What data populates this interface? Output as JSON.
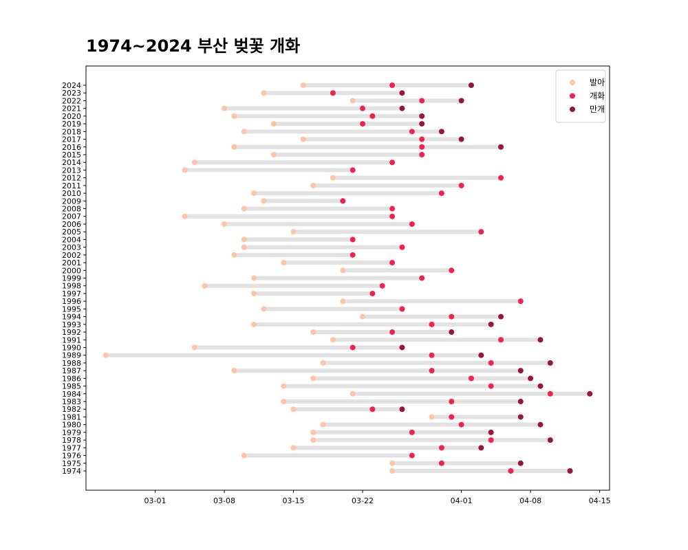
{
  "chart_data": {
    "type": "scatter",
    "title": "1974~2024 부산 벚꽃 개화",
    "xlabel": "",
    "ylabel": "",
    "x_tick_labels": [
      "03-01",
      "03-08",
      "03-15",
      "03-22",
      "04-01",
      "04-08",
      "04-15"
    ],
    "x_tick_dates": [
      "03-01",
      "03-08",
      "03-15",
      "03-22",
      "04-01",
      "04-08",
      "04-15"
    ],
    "xlim": [
      "02-22",
      "04-16"
    ],
    "legend_position": "top-right",
    "grid": false,
    "colors": {
      "bud": "#ffc4a6",
      "bloom": "#f2214e",
      "full": "#9b1440",
      "range_bar": "#e2e2e2"
    },
    "series": [
      {
        "name": "발아",
        "key": "bud"
      },
      {
        "name": "개화",
        "key": "bloom"
      },
      {
        "name": "만개",
        "key": "full"
      }
    ],
    "years": [
      {
        "year": "2024",
        "bud": "03-16",
        "bloom": "03-25",
        "full": "04-02"
      },
      {
        "year": "2023",
        "bud": "03-12",
        "bloom": "03-19",
        "full": "03-26"
      },
      {
        "year": "2022",
        "bud": "03-21",
        "bloom": "03-28",
        "full": "04-01"
      },
      {
        "year": "2021",
        "bud": "03-08",
        "bloom": "03-22",
        "full": "03-26"
      },
      {
        "year": "2020",
        "bud": "03-09",
        "bloom": "03-23",
        "full": "03-28"
      },
      {
        "year": "2019",
        "bud": "03-13",
        "bloom": "03-22",
        "full": "03-28"
      },
      {
        "year": "2018",
        "bud": "03-10",
        "bloom": "03-27",
        "full": "03-30"
      },
      {
        "year": "2017",
        "bud": "03-16",
        "bloom": "03-28",
        "full": "04-01"
      },
      {
        "year": "2016",
        "bud": "03-09",
        "bloom": "03-28",
        "full": "04-05"
      },
      {
        "year": "2015",
        "bud": "03-13",
        "bloom": "03-28",
        "full": null
      },
      {
        "year": "2014",
        "bud": "03-05",
        "bloom": "03-25",
        "full": null
      },
      {
        "year": "2013",
        "bud": "03-04",
        "bloom": "03-21",
        "full": null
      },
      {
        "year": "2012",
        "bud": "03-19",
        "bloom": "04-05",
        "full": null
      },
      {
        "year": "2011",
        "bud": "03-17",
        "bloom": "04-01",
        "full": null
      },
      {
        "year": "2010",
        "bud": "03-11",
        "bloom": "03-30",
        "full": null
      },
      {
        "year": "2009",
        "bud": "03-12",
        "bloom": "03-20",
        "full": null
      },
      {
        "year": "2008",
        "bud": "03-10",
        "bloom": "03-25",
        "full": null
      },
      {
        "year": "2007",
        "bud": "03-04",
        "bloom": "03-25",
        "full": null
      },
      {
        "year": "2006",
        "bud": "03-08",
        "bloom": "03-27",
        "full": null
      },
      {
        "year": "2005",
        "bud": "03-15",
        "bloom": "04-03",
        "full": null
      },
      {
        "year": "2004",
        "bud": "03-10",
        "bloom": "03-21",
        "full": null
      },
      {
        "year": "2003",
        "bud": "03-10",
        "bloom": "03-26",
        "full": null
      },
      {
        "year": "2002",
        "bud": "03-09",
        "bloom": "03-21",
        "full": null
      },
      {
        "year": "2001",
        "bud": "03-14",
        "bloom": "03-25",
        "full": null
      },
      {
        "year": "2000",
        "bud": "03-20",
        "bloom": "03-31",
        "full": null
      },
      {
        "year": "1999",
        "bud": "03-11",
        "bloom": "03-28",
        "full": null
      },
      {
        "year": "1998",
        "bud": "03-06",
        "bloom": "03-24",
        "full": null
      },
      {
        "year": "1997",
        "bud": "03-11",
        "bloom": "03-23",
        "full": null
      },
      {
        "year": "1996",
        "bud": "03-20",
        "bloom": "04-07",
        "full": null
      },
      {
        "year": "1995",
        "bud": "03-12",
        "bloom": "03-26",
        "full": null
      },
      {
        "year": "1994",
        "bud": "03-22",
        "bloom": "03-31",
        "full": "04-05"
      },
      {
        "year": "1993",
        "bud": "03-11",
        "bloom": "03-29",
        "full": "04-04"
      },
      {
        "year": "1992",
        "bud": "03-17",
        "bloom": "03-25",
        "full": "03-31"
      },
      {
        "year": "1991",
        "bud": "03-19",
        "bloom": "04-05",
        "full": "04-09"
      },
      {
        "year": "1990",
        "bud": "03-05",
        "bloom": "03-21",
        "full": "03-26"
      },
      {
        "year": "1989",
        "bud": "02-24",
        "bloom": "03-29",
        "full": "04-03"
      },
      {
        "year": "1988",
        "bud": "03-18",
        "bloom": "04-04",
        "full": "04-10"
      },
      {
        "year": "1987",
        "bud": "03-09",
        "bloom": "03-29",
        "full": "04-07"
      },
      {
        "year": "1986",
        "bud": "03-17",
        "bloom": "04-02",
        "full": "04-08"
      },
      {
        "year": "1985",
        "bud": "03-14",
        "bloom": "04-04",
        "full": "04-09"
      },
      {
        "year": "1984",
        "bud": "03-21",
        "bloom": "04-10",
        "full": "04-14"
      },
      {
        "year": "1983",
        "bud": "03-14",
        "bloom": "03-31",
        "full": "04-07"
      },
      {
        "year": "1982",
        "bud": "03-15",
        "bloom": "03-23",
        "full": "03-26"
      },
      {
        "year": "1981",
        "bud": "03-29",
        "bloom": "03-31",
        "full": "04-07"
      },
      {
        "year": "1980",
        "bud": "03-18",
        "bloom": "04-01",
        "full": "04-09"
      },
      {
        "year": "1979",
        "bud": "03-17",
        "bloom": "03-27",
        "full": "04-04"
      },
      {
        "year": "1978",
        "bud": "03-17",
        "bloom": "04-04",
        "full": "04-10"
      },
      {
        "year": "1977",
        "bud": "03-15",
        "bloom": "03-30",
        "full": "04-03"
      },
      {
        "year": "1976",
        "bud": "03-10",
        "bloom": "03-27",
        "full": null
      },
      {
        "year": "1975",
        "bud": "03-25",
        "bloom": "03-30",
        "full": "04-07"
      },
      {
        "year": "1974",
        "bud": "03-25",
        "bloom": "04-06",
        "full": "04-12"
      }
    ]
  }
}
